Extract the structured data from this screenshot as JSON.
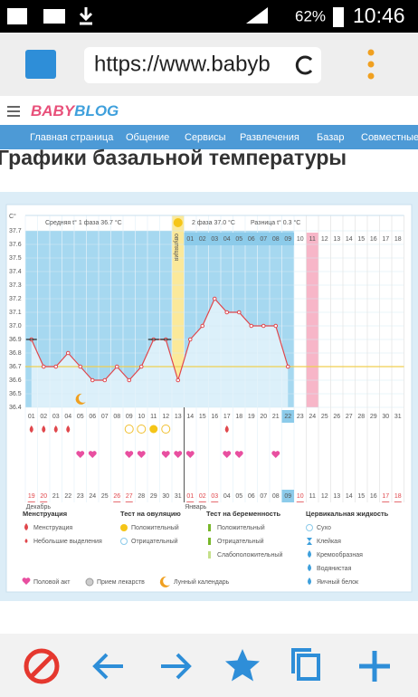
{
  "status_bar": {
    "battery": "62%",
    "time": "10:46"
  },
  "browser": {
    "url": "https://www.babyb"
  },
  "site": {
    "logo_a": "BABY",
    "logo_b": "BLOG",
    "nav": [
      "Главная страница",
      "Общение",
      "Сервисы",
      "Развлечения",
      "Базар",
      "Совместные"
    ]
  },
  "page_title": "Графики базальной температуры",
  "chart_data": {
    "type": "line",
    "y_label": "C°",
    "phase1": "Средняя t° 1 фаза 36.7 °C",
    "phase2": "2 фаза 37.0 °C",
    "difference": "Разница t° 0.3 °C",
    "ovulation_label": "овуляция",
    "ovulation_day": 13,
    "categories": [
      "01",
      "02",
      "03",
      "04",
      "05",
      "06",
      "07",
      "08",
      "09",
      "10",
      "11",
      "12",
      "13",
      "14",
      "15",
      "16",
      "17",
      "18",
      "19",
      "20",
      "21",
      "22",
      "23",
      "24",
      "25",
      "26",
      "27",
      "28",
      "29",
      "30",
      "31"
    ],
    "post_ovulation_days": [
      "01",
      "02",
      "03",
      "04",
      "05",
      "06",
      "07",
      "08",
      "09",
      "10",
      "11",
      "12",
      "13",
      "14",
      "15",
      "16",
      "17",
      "18"
    ],
    "dates": [
      "19",
      "20",
      "21",
      "22",
      "23",
      "24",
      "25",
      "26",
      "27",
      "28",
      "29",
      "30",
      "31",
      "01",
      "02",
      "03",
      "04",
      "05",
      "06",
      "07",
      "08",
      "09",
      "10",
      "11",
      "12",
      "13",
      "14",
      "15",
      "16",
      "17",
      "18"
    ],
    "months": [
      {
        "label": "Декабрь",
        "day": 1
      },
      {
        "label": "Январь",
        "day": 14
      }
    ],
    "red_dates": [
      1,
      2,
      8,
      9,
      14,
      15,
      16,
      23,
      30,
      31
    ],
    "today": 22,
    "expected_period_day": 24,
    "values": [
      36.9,
      36.7,
      36.7,
      36.8,
      36.7,
      36.6,
      36.6,
      36.7,
      36.6,
      36.7,
      36.9,
      36.9,
      36.6,
      36.9,
      37.0,
      37.2,
      37.1,
      37.1,
      37.0,
      37.0,
      37.0,
      36.7,
      null,
      null,
      null,
      null,
      null,
      null,
      null,
      null,
      null
    ],
    "color": "#e0474c",
    "excluded_days": [
      1,
      11,
      12
    ],
    "cover_line": 36.7,
    "ylim": [
      36.4,
      37.7
    ],
    "yticks": [
      36.4,
      36.5,
      36.6,
      36.7,
      36.8,
      36.9,
      {
        "value": 37,
        "label": "37.0"
      },
      37.1,
      37.2,
      37.3,
      37.4,
      37.5,
      37.6,
      37.7
    ],
    "grid": true,
    "menstruation_days": [
      1,
      2,
      3,
      4,
      17
    ],
    "ovulation_test_negative": [
      9,
      10,
      12
    ],
    "ovulation_test_positive": [
      11
    ],
    "intercourse_days": [
      5,
      6,
      9,
      10,
      12,
      13,
      14,
      17,
      18,
      21
    ],
    "moon_days": [
      5
    ],
    "legend": [
      {
        "title": "Менструация",
        "items": [
          "Менструация",
          "Небольшие выделения"
        ]
      },
      {
        "title": "Тест на овуляцию",
        "items": [
          "Положительный",
          "Отрицательный"
        ]
      },
      {
        "title": "Тест на беременность",
        "items": [
          "Положительный",
          "Отрицательный",
          "Слабоположительный"
        ]
      },
      {
        "title": "Цервикальная жидкость",
        "items": [
          "Сухо",
          "Клейкая",
          "Кремообразная",
          "Водянистая",
          "Яичный белок"
        ]
      }
    ],
    "legend_extra": [
      "Половой акт",
      "Прием лекарств",
      "Лунный календарь"
    ]
  }
}
